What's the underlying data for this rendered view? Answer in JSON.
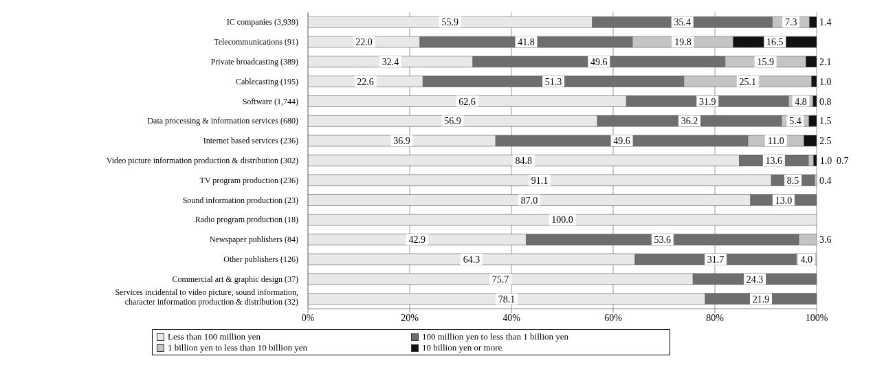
{
  "chart_data": {
    "type": "bar",
    "orientation": "horizontal",
    "stacked": true,
    "categories": [
      "IC companies (3,939)",
      "Telecommunications (91)",
      "Private broadcasting (389)",
      "Cablecasting (195)",
      "Software (1,744)",
      "Data processing & information services (680)",
      "Internet based services (236)",
      "Video picture information production & distribution (302)",
      "TV program production (236)",
      "Sound information production (23)",
      "Radio program production (18)",
      "Newspaper publishers (84)",
      "Other publishers (126)",
      "Commercial art & graphic design (37)",
      "Services incidental to video picture, sound information,\ncharacter information production &  distribution (32)"
    ],
    "series": [
      {
        "name": "Less than 100 million yen",
        "color": "#e8e8e8",
        "values": [
          55.9,
          22.0,
          32.4,
          22.6,
          62.6,
          56.9,
          36.9,
          84.8,
          91.1,
          87.0,
          100.0,
          42.9,
          64.3,
          75.7,
          78.1
        ],
        "value_labels": [
          "55.9",
          "22.0",
          "32.4",
          "22.6",
          "62.6",
          "56.9",
          "36.9",
          "84.8",
          "91.1",
          "87.0",
          "100.0",
          "42.9",
          "64.3",
          "75.7",
          "78.1"
        ]
      },
      {
        "name": "100 million yen to less than 1 billion yen",
        "color": "#6e6e6e",
        "values": [
          35.4,
          41.8,
          49.6,
          51.3,
          31.9,
          36.2,
          49.6,
          13.6,
          8.5,
          13.0,
          null,
          53.6,
          31.7,
          24.3,
          21.9
        ],
        "value_labels": [
          "35.4",
          "41.8",
          "49.6",
          "51.3",
          "31.9",
          "36.2",
          "49.6",
          "13.6",
          "8.5",
          "13.0",
          null,
          "53.6",
          "31.7",
          "24.3",
          "21.9"
        ]
      },
      {
        "name": "1 billion yen to less than 10 billion yen",
        "color": "#c4c4c4",
        "values": [
          7.3,
          19.8,
          15.9,
          25.1,
          4.8,
          5.4,
          11.0,
          1.0,
          0.4,
          null,
          null,
          3.6,
          4.0,
          null,
          null
        ],
        "value_labels": [
          "7.3",
          "19.8",
          "15.9",
          "25.1",
          "4.8",
          "5.4",
          "11.0",
          "1.0",
          "0.4",
          null,
          null,
          "3.6",
          "4.0",
          null,
          null
        ]
      },
      {
        "name": "10 billion yen or more",
        "color": "#111111",
        "values": [
          1.4,
          16.5,
          2.1,
          1.0,
          0.8,
          1.5,
          2.5,
          0.7,
          null,
          null,
          null,
          null,
          null,
          null,
          null
        ],
        "value_labels": [
          "1.4",
          "16.5",
          "2.1",
          "1.0",
          "0.8",
          "1.5",
          "2.5",
          "0.7",
          null,
          null,
          null,
          null,
          null,
          null,
          null
        ]
      }
    ],
    "xlim": [
      0,
      100
    ],
    "xticks": [
      {
        "value": 0,
        "label": "0%"
      },
      {
        "value": 20,
        "label": "20%"
      },
      {
        "value": 40,
        "label": "40%"
      },
      {
        "value": 60,
        "label": "60%"
      },
      {
        "value": 80,
        "label": "80%"
      },
      {
        "value": 100,
        "label": "100%"
      }
    ],
    "grid": "x",
    "legend": "bottom"
  }
}
